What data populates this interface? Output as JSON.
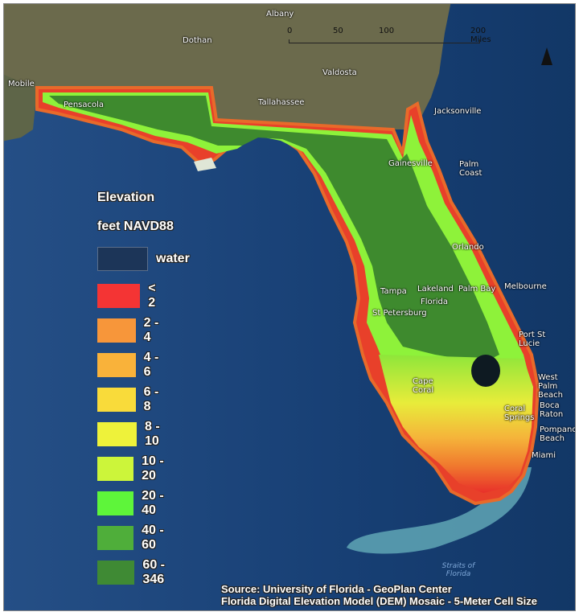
{
  "legend": {
    "title": "Elevation",
    "subtitle": "feet NAVD88",
    "items": [
      {
        "label": "water",
        "color": "#1c3558"
      },
      {
        "label": "< 2",
        "color": "#f43434"
      },
      {
        "label": "2 - 4",
        "color": "#f7963a"
      },
      {
        "label": "4 - 6",
        "color": "#f9b23a"
      },
      {
        "label": "6 - 8",
        "color": "#f9db3a"
      },
      {
        "label": "8 - 10",
        "color": "#eef23a"
      },
      {
        "label": "10 - 20",
        "color": "#ccf53a"
      },
      {
        "label": "20 - 40",
        "color": "#5ef53a"
      },
      {
        "label": "40 - 60",
        "color": "#4fae3a"
      },
      {
        "label": "60 - 346",
        "color": "#3f8a34"
      }
    ]
  },
  "scale_bar": {
    "ticks": [
      "0",
      "50",
      "100",
      "200 Miles"
    ]
  },
  "north_arrow": {
    "icon": "north-arrow-icon"
  },
  "cities": [
    {
      "name": "Albany"
    },
    {
      "name": "Dothan"
    },
    {
      "name": "Valdosta"
    },
    {
      "name": "Mobile"
    },
    {
      "name": "Pensacola"
    },
    {
      "name": "Tallahassee"
    },
    {
      "name": "Jacksonville"
    },
    {
      "name": "Gainesville"
    },
    {
      "name": "Palm Coast"
    },
    {
      "name": "Orlando"
    },
    {
      "name": "Tampa"
    },
    {
      "name": "Lakeland"
    },
    {
      "name": "Palm Bay"
    },
    {
      "name": "Melbourne"
    },
    {
      "name": "Florida"
    },
    {
      "name": "St Petersburg"
    },
    {
      "name": "Port St Lucie"
    },
    {
      "name": "Cape Coral"
    },
    {
      "name": "West Palm Beach"
    },
    {
      "name": "Boca Raton"
    },
    {
      "name": "Coral Springs"
    },
    {
      "name": "Pompano Beach"
    },
    {
      "name": "Miami"
    }
  ],
  "water_labels": [
    {
      "name": "Straits of Florida"
    }
  ],
  "source": {
    "line1": "Source: University of Florida - GeoPlan Center",
    "line2": "Florida Digital Elevation Model (DEM) Mosaic - 5-Meter Cell Size"
  }
}
